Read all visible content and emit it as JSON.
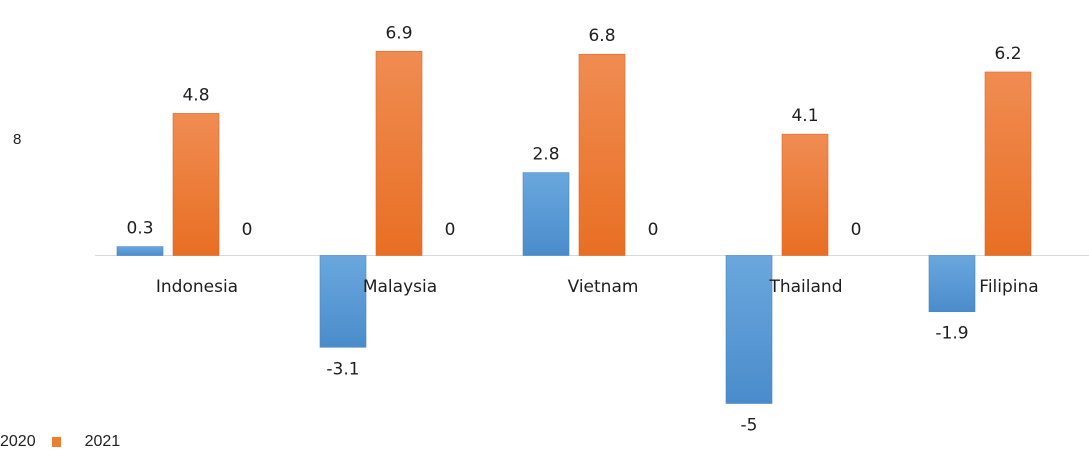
{
  "chart_data": {
    "type": "bar",
    "categories": [
      "Indonesia",
      "Malaysia",
      "Vietnam",
      "Thailand",
      "Filipina"
    ],
    "series": [
      {
        "name": "2020",
        "values": [
          0.3,
          -3.1,
          2.8,
          -5,
          -1.9
        ],
        "color": "#5B9BD5"
      },
      {
        "name": "2021",
        "values": [
          4.8,
          6.9,
          6.8,
          4.1,
          6.2
        ],
        "color": "#ED7D31"
      },
      {
        "name": "",
        "values": [
          0,
          0,
          0,
          0,
          null
        ]
      }
    ],
    "data_labels": [
      [
        "0.3",
        "4.8",
        "0"
      ],
      [
        "-3.1",
        "6.9",
        "0"
      ],
      [
        "2.8",
        "6.8",
        "0"
      ],
      [
        "-5",
        "4.1",
        "0"
      ],
      [
        "-1.9",
        "6.2",
        ""
      ]
    ],
    "stray_label": "8",
    "legend": [
      "2020",
      "2021"
    ],
    "legend_position": "bottom-left",
    "grid": false,
    "ylim": [
      -5.4,
      7.5
    ]
  }
}
